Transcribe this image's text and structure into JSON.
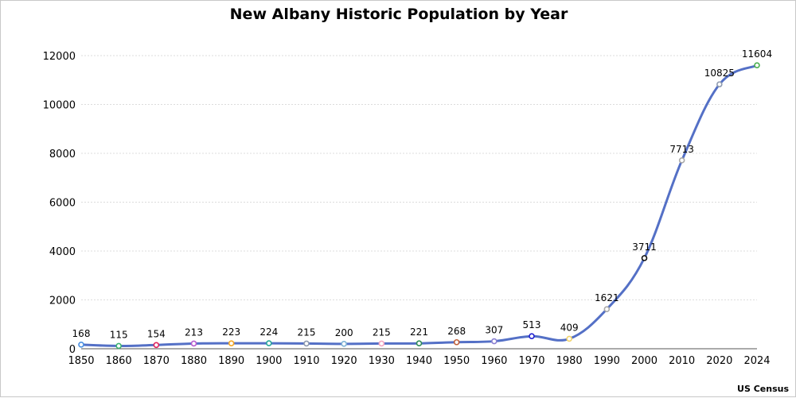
{
  "chart_data": {
    "type": "line",
    "title": "New Albany Historic Population by Year",
    "source": "US Census",
    "xlabel": "",
    "ylabel": "",
    "ylim": [
      0,
      12000
    ],
    "yticks": [
      0,
      2000,
      4000,
      6000,
      8000,
      10000,
      12000
    ],
    "grid": true,
    "legend": "none",
    "line_color": "#5470c6",
    "x": [
      "1850",
      "1860",
      "1870",
      "1880",
      "1890",
      "1900",
      "1910",
      "1920",
      "1930",
      "1940",
      "1950",
      "1960",
      "1970",
      "1980",
      "1990",
      "2000",
      "2010",
      "2020",
      "2024"
    ],
    "values": [
      168,
      115,
      154,
      213,
      223,
      224,
      215,
      200,
      215,
      221,
      268,
      307,
      513,
      409,
      1621,
      3711,
      7713,
      10825,
      11604
    ],
    "value_labels": [
      "168",
      "115",
      "154",
      "213",
      "223",
      "224",
      "215",
      "200",
      "215",
      "221",
      "268",
      "307",
      "513",
      "409",
      "1621",
      "3711",
      "7713",
      "10825",
      "11604"
    ],
    "point_colors": [
      "#4a90e2",
      "#3cb371",
      "#e0245e",
      "#b85ccf",
      "#f5a623",
      "#26a69a",
      "#8e9aaf",
      "#7fb3d5",
      "#f4a6c0",
      "#2e8b57",
      "#c0603a",
      "#8a7fd1",
      "#1f1fd1",
      "#f2d36b",
      "#a9a9a9",
      "#111111",
      "#a9a9a9",
      "#8e9aaf",
      "#4caf50"
    ]
  }
}
